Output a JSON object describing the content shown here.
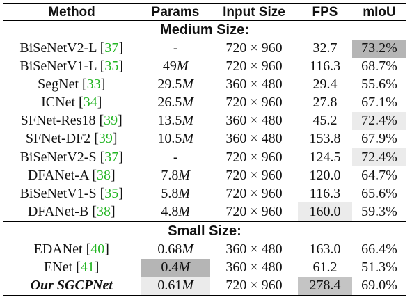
{
  "headers": {
    "method": "Method",
    "params": "Params",
    "input_size": "Input Size",
    "fps": "FPS",
    "miou": "mIoU"
  },
  "sections": [
    {
      "title": "Medium Size:",
      "rows": [
        {
          "method": "BiSeNetV2-L",
          "ref": "37",
          "params": "-",
          "input": "720 × 960",
          "fps": "32.7",
          "miou": "73.2%",
          "hl_miou": "dark"
        },
        {
          "method": "BiSeNetV1-L",
          "ref": "35",
          "params": "49",
          "params_unit": "M",
          "input": "720 × 960",
          "fps": "116.3",
          "miou": "68.7%"
        },
        {
          "method": "SegNet",
          "ref": "33",
          "params": "29.5",
          "params_unit": "M",
          "input": "360 × 480",
          "fps": "29.4",
          "miou": "55.6%"
        },
        {
          "method": "ICNet",
          "ref": "34",
          "params": "26.5",
          "params_unit": "M",
          "input": "720 × 960",
          "fps": "27.8",
          "miou": "67.1%"
        },
        {
          "method": "SFNet-Res18",
          "ref": "39",
          "params": "13.5",
          "params_unit": "M",
          "input": "360 × 480",
          "fps": "45.2",
          "miou": "72.4%",
          "hl_miou": "light"
        },
        {
          "method": "SFNet-DF2",
          "ref": "39",
          "params": "10.5",
          "params_unit": "M",
          "input": "360 × 480",
          "fps": "153.8",
          "miou": "67.9%"
        },
        {
          "method": "BiSeNetV2-S",
          "ref": "37",
          "params": "-",
          "input": "720 × 960",
          "fps": "124.5",
          "miou": "72.4%",
          "hl_miou": "light"
        },
        {
          "method": "DFANet-A",
          "ref": "38",
          "params": "7.8",
          "params_unit": "M",
          "input": "720 × 960",
          "fps": "120.0",
          "miou": "64.7%"
        },
        {
          "method": "BiSeNetV1-S",
          "ref": "35",
          "params": "5.8",
          "params_unit": "M",
          "input": "720 × 960",
          "fps": "116.3",
          "miou": "65.6%"
        },
        {
          "method": "DFANet-B",
          "ref": "38",
          "params": "4.8",
          "params_unit": "M",
          "input": "720 × 960",
          "fps": "160.0",
          "miou": "59.3%",
          "hl_fps": "light"
        }
      ]
    },
    {
      "title": "Small Size:",
      "rows": [
        {
          "method": "EDANet",
          "ref": "40",
          "params": "0.68",
          "params_unit": "M",
          "input": "360 × 480",
          "fps": "163.0",
          "miou": "66.4%"
        },
        {
          "method": "ENet",
          "ref": "41",
          "params": "0.4",
          "params_unit": "M",
          "input": "360 × 480",
          "fps": "61.2",
          "miou": "51.3%",
          "hl_params": "dark"
        },
        {
          "method": "Our SGCPNet",
          "ours": true,
          "params": "0.61",
          "params_unit": "M",
          "input": "720 × 960",
          "fps": "278.4",
          "miou": "69.0%",
          "hl_params": "light",
          "hl_fps": "mid"
        }
      ]
    }
  ]
}
